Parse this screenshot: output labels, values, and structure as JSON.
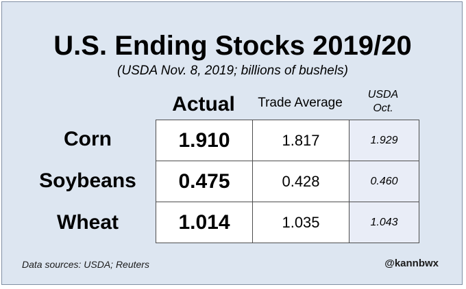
{
  "title": "U.S. Ending Stocks 2019/20",
  "subtitle": "(USDA Nov. 8, 2019; billions of bushels)",
  "columns": {
    "actual": "Actual",
    "trade": "Trade Average",
    "usda_line1": "USDA",
    "usda_line2": "Oct."
  },
  "footer": {
    "source": "Data sources: USDA; Reuters",
    "handle": "@kannbwx"
  },
  "colors": {
    "background": "#dde6f1",
    "usda_column": "#e9edf7"
  },
  "chart_data": {
    "type": "table",
    "title": "U.S. Ending Stocks 2019/20",
    "subtitle": "(USDA Nov. 8, 2019; billions of bushels)",
    "columns": [
      "Actual",
      "Trade Average",
      "USDA Oct."
    ],
    "rows": [
      {
        "label": "Corn",
        "values": [
          "1.910",
          "1.817",
          "1.929"
        ]
      },
      {
        "label": "Soybeans",
        "values": [
          "0.475",
          "0.428",
          "0.460"
        ]
      },
      {
        "label": "Wheat",
        "values": [
          "1.014",
          "1.035",
          "1.043"
        ]
      }
    ]
  }
}
